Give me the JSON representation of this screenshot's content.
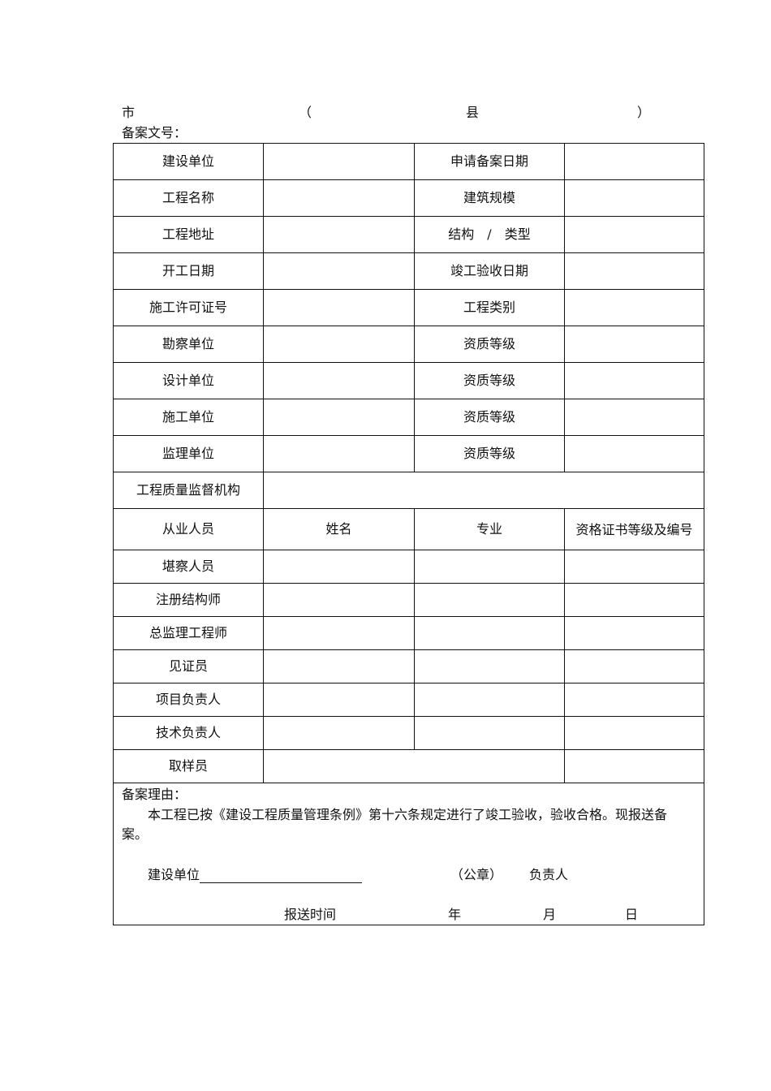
{
  "header": {
    "city": "市",
    "paren_open": "（",
    "county": "县",
    "paren_close": "）",
    "record_no_label": "备案文号："
  },
  "info_rows": [
    {
      "left": "建设单位",
      "right": "申请备案日期"
    },
    {
      "left": "工程名称",
      "right": "建筑规模"
    },
    {
      "left": "工程地址",
      "right": "结构　/　类型"
    },
    {
      "left": "开工日期",
      "right": "竣工验收日期"
    },
    {
      "left": "施工许可证号",
      "right": "工程类别"
    },
    {
      "left": "勘察单位",
      "right": "资质等级"
    },
    {
      "left": "设计单位",
      "right": "资质等级"
    },
    {
      "left": "施工单位",
      "right": "资质等级"
    },
    {
      "left": "监理单位",
      "right": "资质等级"
    }
  ],
  "supervision_org_label": "工程质量监督机构",
  "personnel_header": [
    "从业人员",
    "姓名",
    "专业",
    "资格证书等级及编号"
  ],
  "personnel_rows": [
    "堪察人员",
    "注册结构师",
    "总监理工程师",
    "见证员",
    "项目负责人",
    "技术负责人",
    "取样员"
  ],
  "declaration": {
    "title": "备案理由：",
    "body_line1": "本工程已按《建设工程质量管理条例》第十六条规定进行了竣工验收，验收合格。现报送备",
    "body_line2": "案。",
    "unit_label": "建设单位",
    "seal_label": "（公章）",
    "responsible_label": "负责人",
    "submit_time_label": "报送时间",
    "year": "年",
    "month": "月",
    "day": "日"
  }
}
